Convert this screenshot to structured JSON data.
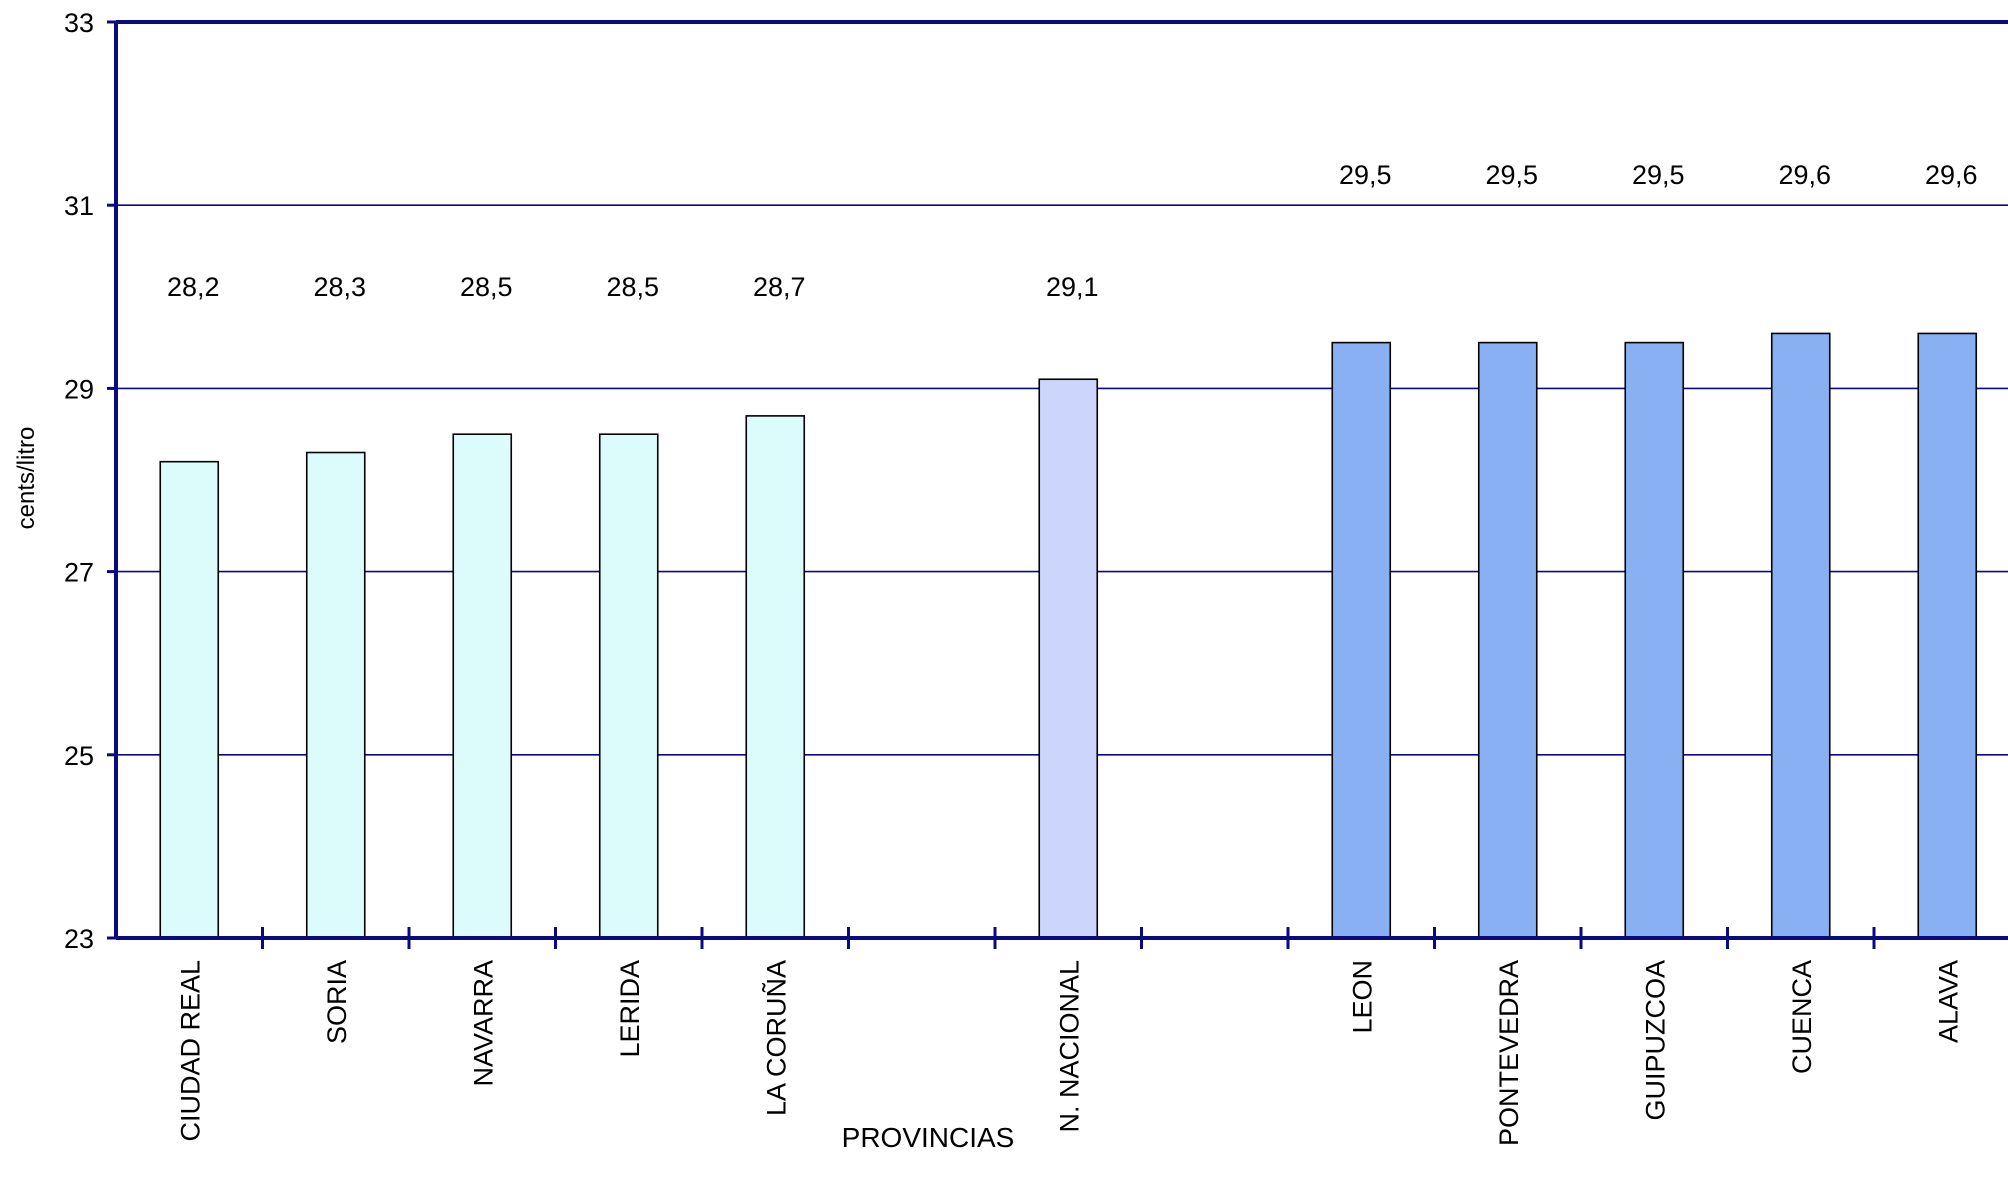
{
  "chart_data": {
    "type": "bar",
    "title": "",
    "xlabel": "PROVINCIAS",
    "ylabel": "cents/litro",
    "ylim": [
      23,
      33
    ],
    "yticks": [
      "23",
      "25",
      "27",
      "29",
      "31",
      "33"
    ],
    "grid": true,
    "categories": [
      "CIUDAD REAL",
      "SORIA",
      "NAVARRA",
      "LERIDA",
      "LA CORUÑA",
      "",
      "N. NACIONAL",
      "",
      "LEON",
      "PONTEVEDRA",
      "GUIPUZCOA",
      "CUENCA",
      "ALAVA"
    ],
    "values": [
      28.2,
      28.3,
      28.5,
      28.5,
      28.7,
      null,
      29.1,
      null,
      29.5,
      29.5,
      29.5,
      29.6,
      29.6
    ],
    "value_labels": [
      "28,2",
      "28,3",
      "28,5",
      "28,5",
      "28,7",
      "",
      "29,1",
      "",
      "29,5",
      "29,5",
      "29,5",
      "29,6",
      "29,6"
    ],
    "group_colors": {
      "low": "#dcfcfc",
      "national": "#ccd6fc",
      "high": "#88b0f2"
    },
    "bar_groups": [
      "low",
      "low",
      "low",
      "low",
      "low",
      "",
      "national",
      "",
      "high",
      "high",
      "high",
      "high",
      "high"
    ],
    "axis_color": "#0a0a80",
    "grid_color": "#0a0a80"
  }
}
